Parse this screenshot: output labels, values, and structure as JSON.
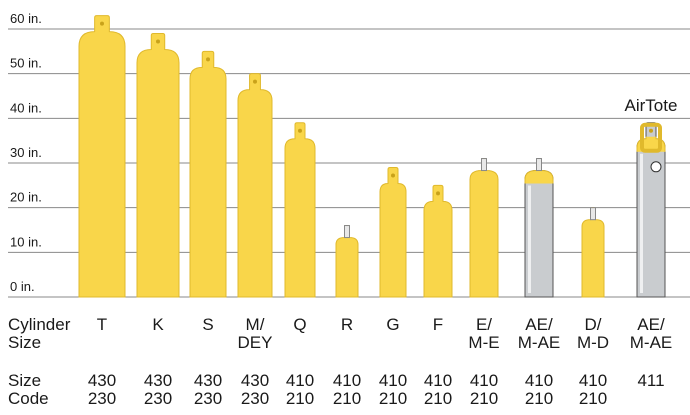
{
  "chart_data": {
    "type": "bar",
    "annotation": "AirTote",
    "row_labels": [
      [
        "Cylinder",
        "Size"
      ],
      [
        "Size",
        "Code"
      ]
    ],
    "categories": [
      [
        "T"
      ],
      [
        "K"
      ],
      [
        "S"
      ],
      [
        "M/",
        "DEY"
      ],
      [
        "Q"
      ],
      [
        "R"
      ],
      [
        "G"
      ],
      [
        "F"
      ],
      [
        "E/",
        "M-E"
      ],
      [
        "AE/",
        "M-AE"
      ],
      [
        "D/",
        "M-D"
      ],
      [
        "AE/",
        "M-AE"
      ]
    ],
    "size_codes": [
      [
        "430",
        "230"
      ],
      [
        "430",
        "230"
      ],
      [
        "430",
        "230"
      ],
      [
        "430",
        "230"
      ],
      [
        "410",
        "210"
      ],
      [
        "410",
        "210"
      ],
      [
        "410",
        "210"
      ],
      [
        "410",
        "210"
      ],
      [
        "410",
        "210"
      ],
      [
        "410",
        "210"
      ],
      [
        "410",
        "210"
      ],
      [
        "411"
      ]
    ],
    "values": [
      63,
      59,
      55,
      50,
      39,
      16,
      29,
      25,
      31,
      31,
      20,
      39
    ],
    "colors": [
      "#f9d64a",
      "#f9d64a",
      "#f9d64a",
      "#f9d64a",
      "#f9d64a",
      "#f9d64a",
      "#f9d64a",
      "#f9d64a",
      "#f9d64a",
      "#c9cccf",
      "#f9d64a",
      "#c9cccf"
    ],
    "ylim": [
      0,
      63
    ],
    "yticks": [
      {
        "value": 0,
        "label": "0 in."
      },
      {
        "value": 10,
        "label": "10 in."
      },
      {
        "value": 20,
        "label": "20 in."
      },
      {
        "value": 30,
        "label": "30 in."
      },
      {
        "value": 40,
        "label": "40 in."
      },
      {
        "value": 50,
        "label": "50 in."
      },
      {
        "value": 60,
        "label": "60 in."
      }
    ],
    "grid": true
  }
}
